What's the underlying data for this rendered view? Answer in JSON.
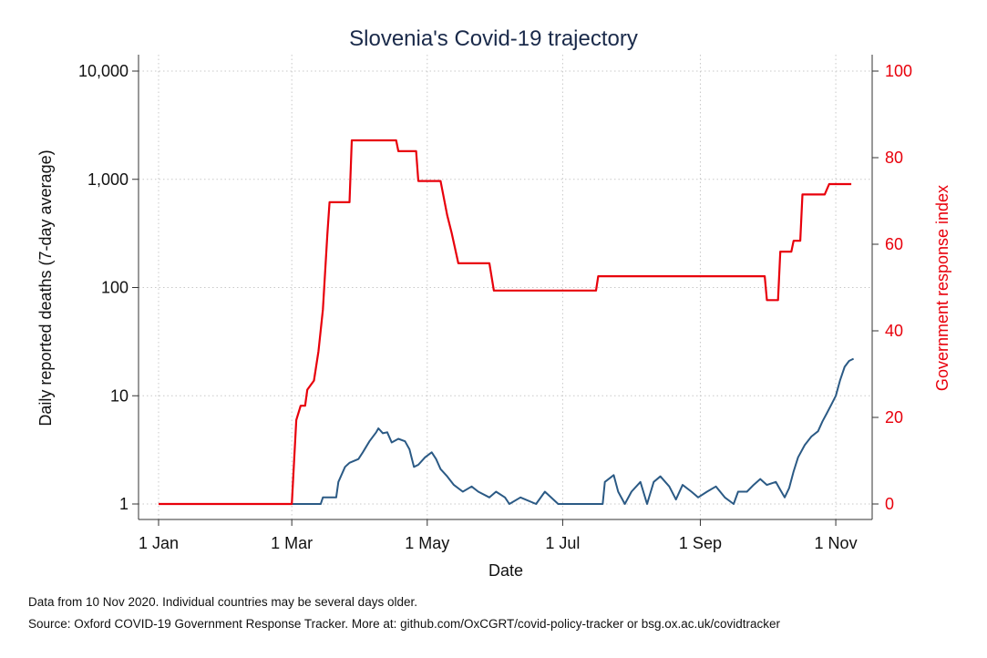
{
  "chart_data": {
    "type": "line",
    "title": "Slovenia's Covid-19 trajectory",
    "xlabel": "Date",
    "ylabel": "Daily reported deaths (7-day average)",
    "y2label": "Government response index",
    "x_range": [
      "2020-01-01",
      "2020-11-10"
    ],
    "x_ticks": [
      "1 Jan",
      "1 Mar",
      "1 May",
      "1 Jul",
      "1 Sep",
      "1 Nov"
    ],
    "y_scale": "log",
    "y_range": [
      1,
      10000
    ],
    "y_ticks": [
      "1",
      "10",
      "100",
      "1,000",
      "10,000"
    ],
    "y2_range": [
      0,
      100
    ],
    "y2_ticks": [
      "0",
      "20",
      "40",
      "60",
      "80",
      "100"
    ],
    "grid": true,
    "series": [
      {
        "name": "Daily reported deaths (7-day average)",
        "axis": "left",
        "color": "#2b5a85",
        "points": [
          [
            "2020-01-01",
            1
          ],
          [
            "2020-03-14",
            1
          ],
          [
            "2020-03-15",
            1.15
          ],
          [
            "2020-03-21",
            1.15
          ],
          [
            "2020-03-22",
            1.6
          ],
          [
            "2020-03-25",
            2.2
          ],
          [
            "2020-03-27",
            2.4
          ],
          [
            "2020-03-31",
            2.6
          ],
          [
            "2020-04-02",
            3.0
          ],
          [
            "2020-04-05",
            3.8
          ],
          [
            "2020-04-08",
            4.6
          ],
          [
            "2020-04-09",
            5.0
          ],
          [
            "2020-04-11",
            4.5
          ],
          [
            "2020-04-13",
            4.6
          ],
          [
            "2020-04-15",
            3.7
          ],
          [
            "2020-04-18",
            4.0
          ],
          [
            "2020-04-21",
            3.8
          ],
          [
            "2020-04-23",
            3.2
          ],
          [
            "2020-04-25",
            2.2
          ],
          [
            "2020-04-27",
            2.3
          ],
          [
            "2020-04-30",
            2.7
          ],
          [
            "2020-05-03",
            3.0
          ],
          [
            "2020-05-05",
            2.6
          ],
          [
            "2020-05-07",
            2.1
          ],
          [
            "2020-05-10",
            1.8
          ],
          [
            "2020-05-13",
            1.5
          ],
          [
            "2020-05-17",
            1.3
          ],
          [
            "2020-05-21",
            1.45
          ],
          [
            "2020-05-24",
            1.3
          ],
          [
            "2020-05-29",
            1.15
          ],
          [
            "2020-06-01",
            1.3
          ],
          [
            "2020-06-05",
            1.15
          ],
          [
            "2020-06-07",
            1.0
          ],
          [
            "2020-06-12",
            1.15
          ],
          [
            "2020-06-19",
            1.0
          ],
          [
            "2020-06-23",
            1.3
          ],
          [
            "2020-06-29",
            1.0
          ],
          [
            "2020-07-19",
            1.0
          ],
          [
            "2020-07-20",
            1.6
          ],
          [
            "2020-07-24",
            1.85
          ],
          [
            "2020-07-26",
            1.3
          ],
          [
            "2020-07-29",
            1.0
          ],
          [
            "2020-08-01",
            1.3
          ],
          [
            "2020-08-05",
            1.6
          ],
          [
            "2020-08-08",
            1.0
          ],
          [
            "2020-08-11",
            1.6
          ],
          [
            "2020-08-14",
            1.8
          ],
          [
            "2020-08-18",
            1.45
          ],
          [
            "2020-08-21",
            1.1
          ],
          [
            "2020-08-24",
            1.5
          ],
          [
            "2020-08-28",
            1.3
          ],
          [
            "2020-08-31",
            1.15
          ],
          [
            "2020-09-04",
            1.3
          ],
          [
            "2020-09-08",
            1.45
          ],
          [
            "2020-09-12",
            1.15
          ],
          [
            "2020-09-16",
            1.0
          ],
          [
            "2020-09-18",
            1.3
          ],
          [
            "2020-09-22",
            1.3
          ],
          [
            "2020-09-25",
            1.5
          ],
          [
            "2020-09-28",
            1.7
          ],
          [
            "2020-10-01",
            1.5
          ],
          [
            "2020-10-05",
            1.6
          ],
          [
            "2020-10-07",
            1.35
          ],
          [
            "2020-10-09",
            1.15
          ],
          [
            "2020-10-11",
            1.4
          ],
          [
            "2020-10-13",
            2.0
          ],
          [
            "2020-10-15",
            2.7
          ],
          [
            "2020-10-18",
            3.5
          ],
          [
            "2020-10-21",
            4.2
          ],
          [
            "2020-10-24",
            4.7
          ],
          [
            "2020-10-26",
            5.8
          ],
          [
            "2020-10-28",
            6.9
          ],
          [
            "2020-10-30",
            8.3
          ],
          [
            "2020-11-01",
            10.0
          ],
          [
            "2020-11-03",
            14.0
          ],
          [
            "2020-11-05",
            18.5
          ],
          [
            "2020-11-07",
            21.0
          ],
          [
            "2020-11-09",
            22.0
          ]
        ]
      },
      {
        "name": "Government response index",
        "axis": "right",
        "color": "#e8000b",
        "points": [
          [
            "2020-01-01",
            0
          ],
          [
            "2020-02-29",
            0
          ],
          [
            "2020-03-01",
            0
          ],
          [
            "2020-03-03",
            19.4
          ],
          [
            "2020-03-05",
            22.7
          ],
          [
            "2020-03-07",
            22.7
          ],
          [
            "2020-03-08",
            26.4
          ],
          [
            "2020-03-11",
            28.5
          ],
          [
            "2020-03-13",
            35.2
          ],
          [
            "2020-03-15",
            44.9
          ],
          [
            "2020-03-17",
            62.3
          ],
          [
            "2020-03-18",
            69.7
          ],
          [
            "2020-03-27",
            69.7
          ],
          [
            "2020-03-28",
            84.0
          ],
          [
            "2020-04-17",
            84.0
          ],
          [
            "2020-04-18",
            81.5
          ],
          [
            "2020-04-26",
            81.5
          ],
          [
            "2020-04-27",
            74.6
          ],
          [
            "2020-05-07",
            74.6
          ],
          [
            "2020-05-10",
            66.7
          ],
          [
            "2020-05-12",
            62.6
          ],
          [
            "2020-05-15",
            55.6
          ],
          [
            "2020-05-29",
            55.6
          ],
          [
            "2020-05-31",
            49.3
          ],
          [
            "2020-07-16",
            49.3
          ],
          [
            "2020-07-17",
            52.6
          ],
          [
            "2020-09-30",
            52.6
          ],
          [
            "2020-10-01",
            47.1
          ],
          [
            "2020-10-06",
            47.1
          ],
          [
            "2020-10-07",
            58.3
          ],
          [
            "2020-10-12",
            58.3
          ],
          [
            "2020-10-13",
            60.8
          ],
          [
            "2020-10-16",
            60.8
          ],
          [
            "2020-10-17",
            71.5
          ],
          [
            "2020-10-27",
            71.5
          ],
          [
            "2020-10-29",
            73.9
          ],
          [
            "2020-11-08",
            73.9
          ]
        ]
      }
    ]
  },
  "notes": {
    "line1": "Data from 10 Nov 2020. Individual countries may be several days older.",
    "line2": "Source: Oxford COVID-19 Government Response Tracker. More at: github.com/OxCGRT/covid-policy-tracker or bsg.ox.ac.uk/covidtracker"
  }
}
